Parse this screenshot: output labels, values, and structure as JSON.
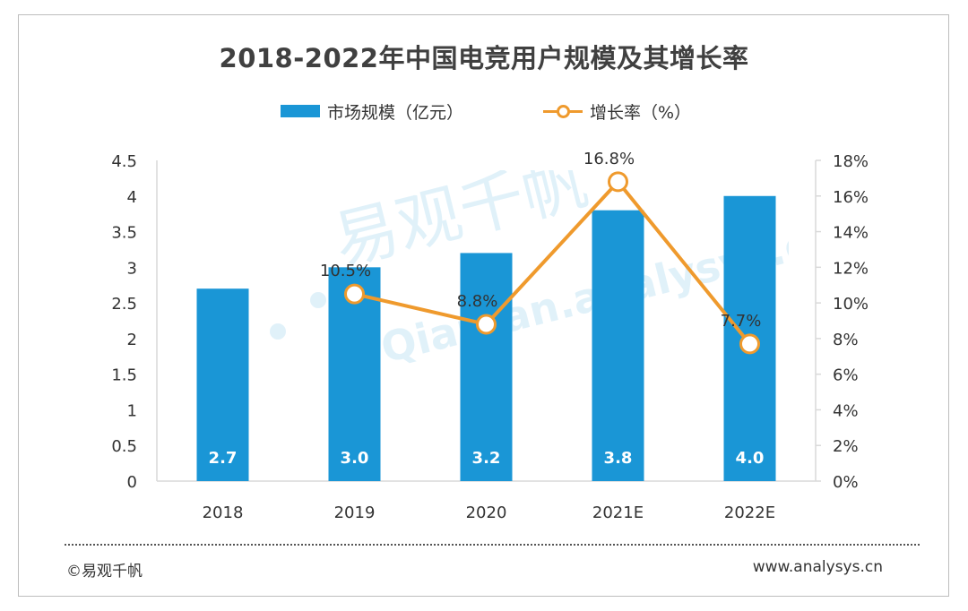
{
  "title": "2018-2022年中国电竞用户规模及其增长率",
  "legend": {
    "bar_label": "市场规模（亿元）",
    "line_label": "增长率（%）"
  },
  "colors": {
    "bar": "#1a96d6",
    "line": "#ef9a2d",
    "grid_axis": "#d9d9d9"
  },
  "chart_data": {
    "type": "bar",
    "title": "2018-2022年中国电竞用户规模及其增长率",
    "categories": [
      "2018",
      "2019",
      "2020",
      "2021E",
      "2022E"
    ],
    "series": [
      {
        "name": "市场规模（亿元）",
        "type": "bar",
        "axis": "left",
        "values": [
          2.7,
          3.0,
          3.2,
          3.8,
          4.0
        ],
        "labels": [
          "2.7",
          "3.0",
          "3.2",
          "3.8",
          "4.0"
        ]
      },
      {
        "name": "增长率（%）",
        "type": "line",
        "axis": "right",
        "values": [
          null,
          10.5,
          8.8,
          16.8,
          7.7
        ],
        "labels": [
          "",
          "10.5%",
          "8.8%",
          "16.8%",
          "7.7%"
        ]
      }
    ],
    "y_left": {
      "min": 0,
      "max": 4.5,
      "ticks": [
        0,
        0.5,
        1,
        1.5,
        2,
        2.5,
        3,
        3.5,
        4,
        4.5
      ],
      "tick_labels": [
        "0",
        "0.5",
        "1",
        "1.5",
        "2",
        "2.5",
        "3",
        "3.5",
        "4",
        "4.5"
      ]
    },
    "y_right": {
      "min": 0,
      "max": 18,
      "ticks": [
        0,
        2,
        4,
        6,
        8,
        10,
        12,
        14,
        16,
        18
      ],
      "tick_labels": [
        "0%",
        "2%",
        "4%",
        "6%",
        "8%",
        "10%",
        "12%",
        "14%",
        "16%",
        "18%"
      ]
    },
    "legend_position": "top-center",
    "grid": false
  },
  "watermark": {
    "cn": "易观千帆",
    "en": "Qianfan.analysys.cn"
  },
  "footer": {
    "left": "©易观千帆",
    "right": "www.analysys.cn"
  }
}
